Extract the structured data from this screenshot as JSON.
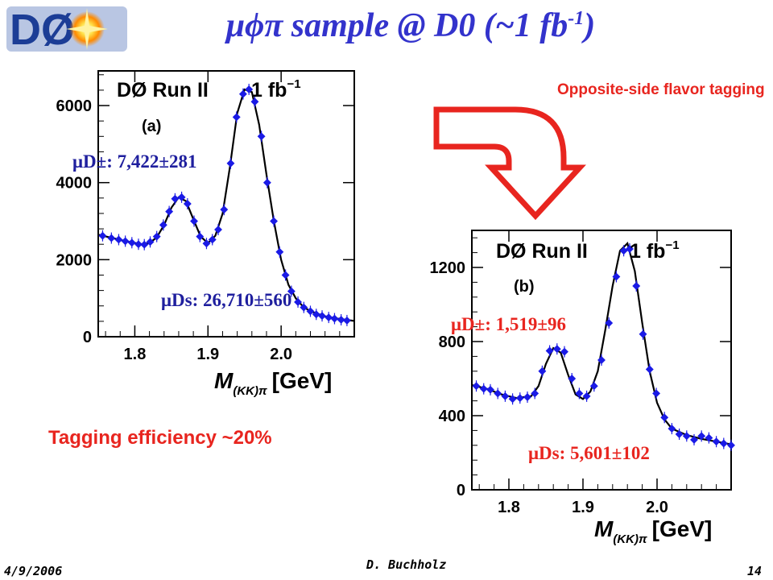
{
  "slide": {
    "title": "μϕπ  sample @ D0 (~1 fb",
    "title_sup": "-1",
    "title_end": ")",
    "arrow_caption": "Opposite-side flavor tagging",
    "efficiency_text": "Tagging efficiency ~20%",
    "footer_date": "4/9/2006",
    "footer_author": "D. Buchholz",
    "footer_page": "14",
    "logo_text": "DØ",
    "colors": {
      "title": "#3333cc",
      "accent": "#e8251f",
      "points": "#1a1ae6",
      "curve": "#000000"
    }
  },
  "chart_data": [
    {
      "type": "line",
      "label": "(a)",
      "experiment": "DØ  Run II",
      "lumi": "1 fb",
      "lumi_sup": "−1",
      "xlabel": "M",
      "xlabel_sub": "(KK)π",
      "xlabel_unit": "[GeV]",
      "xlim": [
        1.75,
        2.1
      ],
      "ylim": [
        0,
        6900
      ],
      "xticks": [
        "1.8",
        "1.9",
        "2.0"
      ],
      "xtick_values": [
        1.8,
        1.9,
        2.0
      ],
      "yticks": [
        "0",
        "2000",
        "4000",
        "6000"
      ],
      "ytick_values": [
        0,
        2000,
        4000,
        6000
      ],
      "yield_dplus": "μD±: 7,422±281",
      "yield_ds": "μDs: 26,710±560",
      "points": [
        [
          1.756,
          2620
        ],
        [
          1.768,
          2560
        ],
        [
          1.778,
          2520
        ],
        [
          1.787,
          2480
        ],
        [
          1.796,
          2440
        ],
        [
          1.805,
          2400
        ],
        [
          1.813,
          2390
        ],
        [
          1.821,
          2460
        ],
        [
          1.83,
          2600
        ],
        [
          1.839,
          2900
        ],
        [
          1.847,
          3250
        ],
        [
          1.855,
          3580
        ],
        [
          1.864,
          3620
        ],
        [
          1.872,
          3450
        ],
        [
          1.881,
          3000
        ],
        [
          1.889,
          2600
        ],
        [
          1.898,
          2420
        ],
        [
          1.906,
          2520
        ],
        [
          1.914,
          2780
        ],
        [
          1.922,
          3300
        ],
        [
          1.931,
          4500
        ],
        [
          1.939,
          5700
        ],
        [
          1.948,
          6300
        ],
        [
          1.956,
          6420
        ],
        [
          1.964,
          6100
        ],
        [
          1.973,
          5200
        ],
        [
          1.981,
          4000
        ],
        [
          1.99,
          3000
        ],
        [
          1.998,
          2200
        ],
        [
          2.006,
          1600
        ],
        [
          2.014,
          1180
        ],
        [
          2.023,
          900
        ],
        [
          2.031,
          760
        ],
        [
          2.04,
          660
        ],
        [
          2.048,
          580
        ],
        [
          2.056,
          540
        ],
        [
          2.065,
          500
        ],
        [
          2.073,
          470
        ],
        [
          2.082,
          440
        ],
        [
          2.09,
          420
        ]
      ],
      "curve": [
        [
          1.75,
          2650
        ],
        [
          1.77,
          2560
        ],
        [
          1.79,
          2470
        ],
        [
          1.81,
          2400
        ],
        [
          1.82,
          2430
        ],
        [
          1.83,
          2580
        ],
        [
          1.84,
          2900
        ],
        [
          1.85,
          3350
        ],
        [
          1.86,
          3620
        ],
        [
          1.87,
          3520
        ],
        [
          1.88,
          3050
        ],
        [
          1.89,
          2600
        ],
        [
          1.9,
          2430
        ],
        [
          1.91,
          2620
        ],
        [
          1.92,
          3200
        ],
        [
          1.93,
          4400
        ],
        [
          1.94,
          5800
        ],
        [
          1.95,
          6420
        ],
        [
          1.96,
          6350
        ],
        [
          1.97,
          5500
        ],
        [
          1.98,
          4200
        ],
        [
          1.99,
          3000
        ],
        [
          2.0,
          2000
        ],
        [
          2.01,
          1350
        ],
        [
          2.02,
          1000
        ],
        [
          2.03,
          780
        ],
        [
          2.04,
          660
        ],
        [
          2.06,
          530
        ],
        [
          2.08,
          460
        ],
        [
          2.1,
          410
        ]
      ]
    },
    {
      "type": "line",
      "label": "(b)",
      "experiment": "DØ  Run II",
      "lumi": "1 fb",
      "lumi_sup": "−1",
      "xlabel": "M",
      "xlabel_sub": "(KK)π",
      "xlabel_unit": "[GeV]",
      "xlim": [
        1.75,
        2.1
      ],
      "ylim": [
        0,
        1400
      ],
      "xticks": [
        "1.8",
        "1.9",
        "2.0"
      ],
      "xtick_values": [
        1.8,
        1.9,
        2.0
      ],
      "yticks": [
        "0",
        "400",
        "800",
        "1200"
      ],
      "ytick_values": [
        0,
        400,
        800,
        1200
      ],
      "yield_dplus": "μD±: 1,519±96",
      "yield_ds": "μDs: 5,601±102",
      "points": [
        [
          1.756,
          560
        ],
        [
          1.766,
          545
        ],
        [
          1.775,
          540
        ],
        [
          1.785,
          520
        ],
        [
          1.795,
          505
        ],
        [
          1.805,
          490
        ],
        [
          1.815,
          495
        ],
        [
          1.825,
          500
        ],
        [
          1.835,
          520
        ],
        [
          1.845,
          640
        ],
        [
          1.855,
          750
        ],
        [
          1.865,
          760
        ],
        [
          1.875,
          745
        ],
        [
          1.885,
          600
        ],
        [
          1.895,
          520
        ],
        [
          1.905,
          505
        ],
        [
          1.915,
          560
        ],
        [
          1.925,
          700
        ],
        [
          1.935,
          900
        ],
        [
          1.945,
          1150
        ],
        [
          1.955,
          1290
        ],
        [
          1.963,
          1300
        ],
        [
          1.972,
          1100
        ],
        [
          1.981,
          840
        ],
        [
          1.99,
          650
        ],
        [
          1.999,
          520
        ],
        [
          2.01,
          390
        ],
        [
          2.02,
          330
        ],
        [
          2.03,
          300
        ],
        [
          2.04,
          290
        ],
        [
          2.05,
          270
        ],
        [
          2.06,
          290
        ],
        [
          2.07,
          280
        ],
        [
          2.08,
          260
        ],
        [
          2.09,
          250
        ],
        [
          2.1,
          240
        ]
      ],
      "curve": [
        [
          1.75,
          565
        ],
        [
          1.77,
          545
        ],
        [
          1.79,
          515
        ],
        [
          1.81,
          495
        ],
        [
          1.83,
          505
        ],
        [
          1.84,
          560
        ],
        [
          1.85,
          680
        ],
        [
          1.86,
          765
        ],
        [
          1.87,
          740
        ],
        [
          1.88,
          620
        ],
        [
          1.89,
          515
        ],
        [
          1.9,
          490
        ],
        [
          1.91,
          530
        ],
        [
          1.92,
          640
        ],
        [
          1.93,
          860
        ],
        [
          1.94,
          1100
        ],
        [
          1.95,
          1290
        ],
        [
          1.96,
          1330
        ],
        [
          1.97,
          1180
        ],
        [
          1.98,
          900
        ],
        [
          1.99,
          640
        ],
        [
          2.0,
          470
        ],
        [
          2.01,
          380
        ],
        [
          2.02,
          330
        ],
        [
          2.04,
          295
        ],
        [
          2.06,
          275
        ],
        [
          2.08,
          260
        ],
        [
          2.1,
          245
        ]
      ]
    }
  ]
}
